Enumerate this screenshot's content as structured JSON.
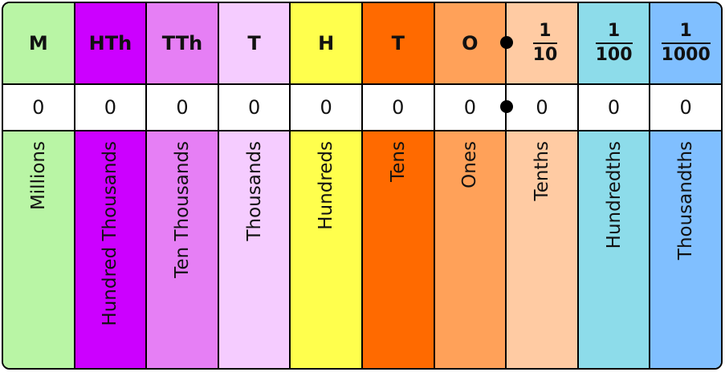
{
  "columns": [
    {
      "abbr": "M",
      "digit": "0",
      "name": "Millions",
      "color": "#b9f5a5"
    },
    {
      "abbr": "HTh",
      "digit": "0",
      "name": "Hundred Thousands",
      "color": "#cc00ff"
    },
    {
      "abbr": "TTh",
      "digit": "0",
      "name": "Ten Thousands",
      "color": "#e67ff5"
    },
    {
      "abbr": "T",
      "digit": "0",
      "name": "Thousands",
      "color": "#f5ccff"
    },
    {
      "abbr": "H",
      "digit": "0",
      "name": "Hundreds",
      "color": "#ffff4d"
    },
    {
      "abbr": "T",
      "digit": "0",
      "name": "Tens",
      "color": "#ff6a00"
    },
    {
      "abbr": "O",
      "digit": "0",
      "name": "Ones",
      "color": "#ffa159"
    },
    {
      "frac_num": "1",
      "frac_den": "10",
      "digit": "0",
      "name": "Tenths",
      "color": "#ffcba3"
    },
    {
      "frac_num": "1",
      "frac_den": "100",
      "digit": "0",
      "name": "Hundredths",
      "color": "#8ddcea"
    },
    {
      "frac_num": "1",
      "frac_den": "1000",
      "digit": "0",
      "name": "Thousandths",
      "color": "#80bfff"
    }
  ]
}
